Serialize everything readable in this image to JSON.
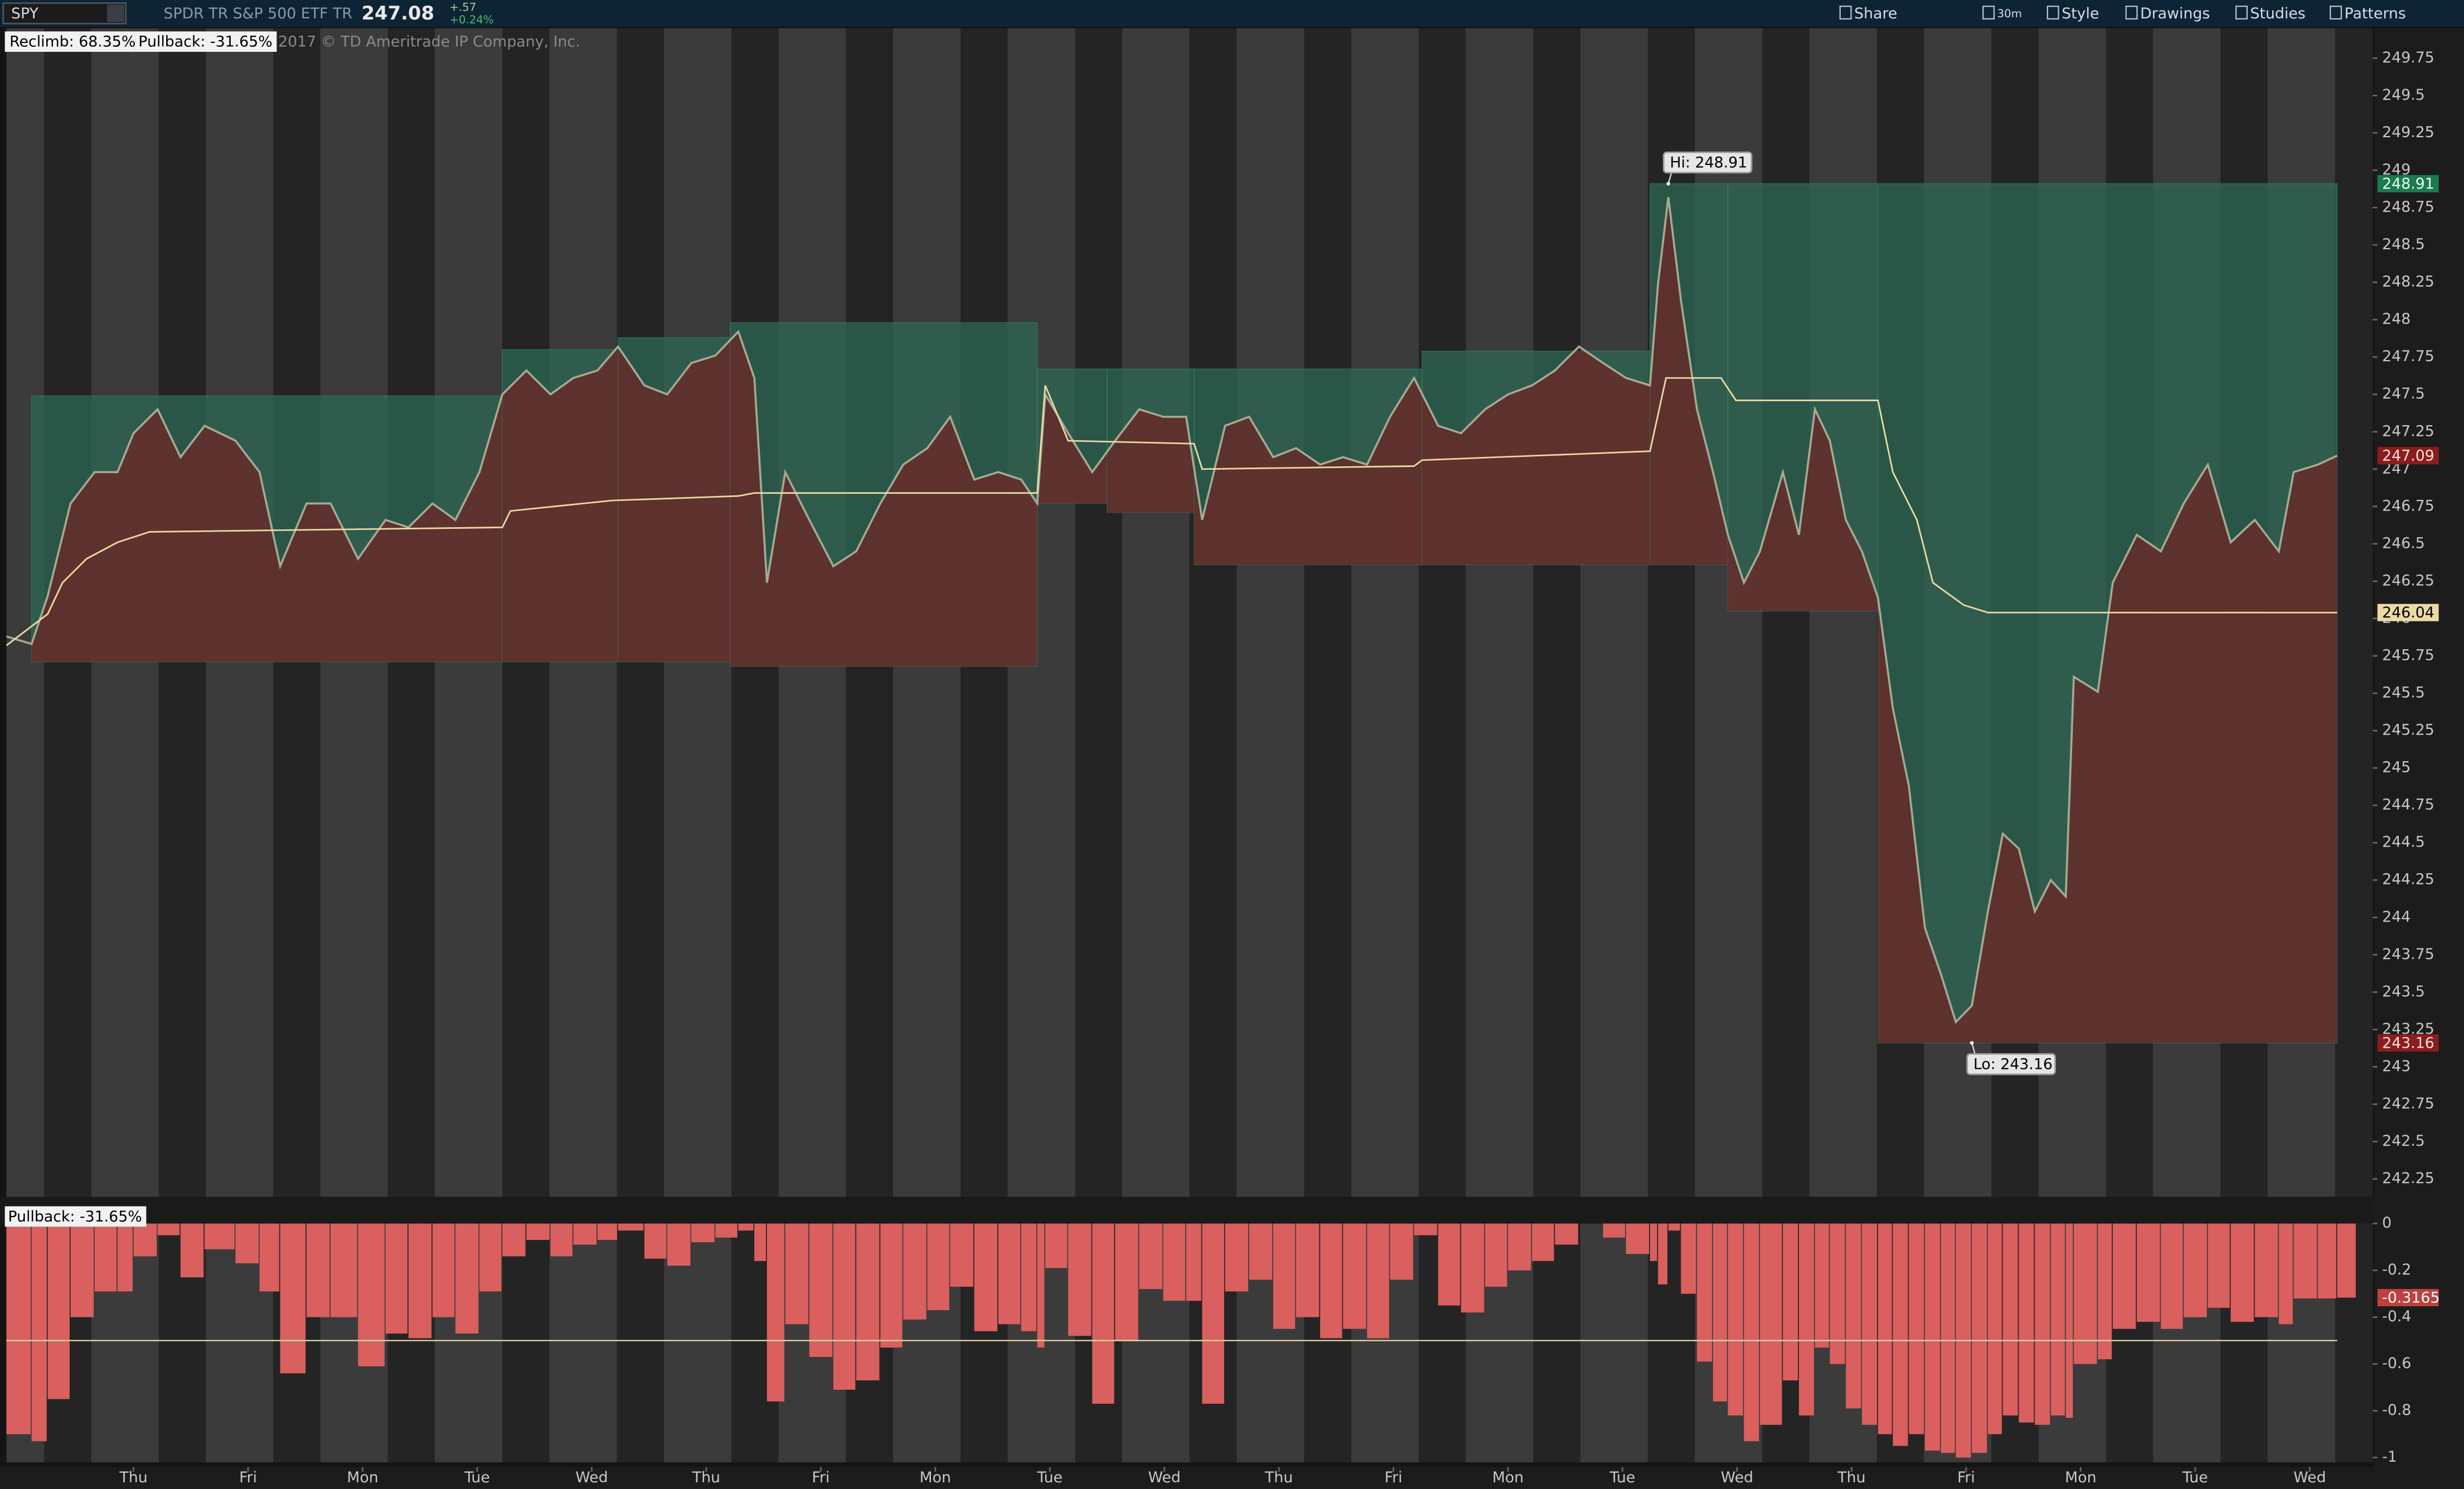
{
  "toolbar": {
    "symbol": "SPY",
    "description": "SPDR TR S&P 500 ETF TR",
    "last": 247.08,
    "change": "+.57",
    "change_pct": "+0.24%",
    "buttons": [
      "Share",
      "30m",
      "Style",
      "Drawings",
      "Studies",
      "Patterns"
    ]
  },
  "chart_data": [
    {
      "type": "line",
      "labels": [
        "Reclimb: 68.35%",
        "Pullback: -31.65%"
      ],
      "copyright": "2017 © TD Ameritrade IP Company, Inc.",
      "xlim": [
        -0.61,
        20.05
      ],
      "xticks": [
        {
          "value": 0.5,
          "label": "Thu"
        },
        {
          "value": 1.5,
          "label": "Fri"
        },
        {
          "value": 2.5,
          "label": "Mon"
        },
        {
          "value": 3.5,
          "label": "Tue"
        },
        {
          "value": 4.5,
          "label": "Wed"
        },
        {
          "value": 5.5,
          "label": "Thu"
        },
        {
          "value": 6.5,
          "label": "Fri"
        },
        {
          "value": 7.5,
          "label": "Mon"
        },
        {
          "value": 8.5,
          "label": "Tue"
        },
        {
          "value": 9.5,
          "label": "Wed"
        },
        {
          "value": 10.5,
          "label": "Thu"
        },
        {
          "value": 11.5,
          "label": "Fri"
        },
        {
          "value": 12.5,
          "label": "Mon"
        },
        {
          "value": 13.5,
          "label": "Tue"
        },
        {
          "value": 14.5,
          "label": "Wed"
        },
        {
          "value": 15.5,
          "label": "Thu"
        },
        {
          "value": 16.5,
          "label": "Fri"
        },
        {
          "value": 17.5,
          "label": "Mon"
        },
        {
          "value": 18.5,
          "label": "Tue"
        },
        {
          "value": 19.5,
          "label": "Wed"
        }
      ],
      "ylim": [
        242.13,
        249.95
      ],
      "yticks": [
        242.25,
        242.5,
        242.75,
        243,
        243.25,
        243.5,
        243.75,
        244,
        244.25,
        244.5,
        244.75,
        245,
        245.25,
        245.5,
        245.75,
        246,
        246.25,
        246.5,
        246.75,
        247,
        247.25,
        247.5,
        247.75,
        248,
        248.25,
        248.5,
        248.75,
        249,
        249.25,
        249.5,
        249.75
      ],
      "high_color": "#2c6a55",
      "low_color": "#6b2626",
      "zones": [
        {
          "x": [
            -0.39,
            3.72
          ],
          "high": 247.49,
          "low": 245.71
        },
        {
          "x": [
            3.72,
            4.73
          ],
          "high": 247.8,
          "low": 245.71
        },
        {
          "x": [
            4.73,
            5.71
          ],
          "high": 247.88,
          "low": 245.71
        },
        {
          "x": [
            5.71,
            8.39
          ],
          "high": 247.98,
          "low": 245.68
        },
        {
          "x": [
            8.39,
            9.0
          ],
          "high": 247.67,
          "low": 246.77
        },
        {
          "x": [
            9.0,
            9.76
          ],
          "high": 247.67,
          "low": 246.71
        },
        {
          "x": [
            9.76,
            11.75
          ],
          "high": 247.67,
          "low": 246.36
        },
        {
          "x": [
            11.75,
            13.74
          ],
          "high": 247.79,
          "low": 246.36
        },
        {
          "x": [
            13.74,
            14.42
          ],
          "high": 248.91,
          "low": 246.36
        },
        {
          "x": [
            14.42,
            15.73
          ],
          "high": 248.91,
          "low": 246.05
        },
        {
          "x": [
            15.73,
            19.74
          ],
          "high": 248.91,
          "low": 243.16
        }
      ],
      "series": [
        {
          "color": "#a3ab94",
          "x": [
            -0.61,
            -0.39,
            -0.25,
            -0.05,
            0.16,
            0.36,
            0.5,
            0.71,
            0.91,
            1.12,
            1.39,
            1.6,
            1.78,
            2.01,
            2.22,
            2.46,
            2.7,
            2.9,
            3.11,
            3.31,
            3.52,
            3.72,
            3.93,
            4.14,
            4.34,
            4.55,
            4.73,
            4.96,
            5.16,
            5.37,
            5.58,
            5.78,
            5.92,
            6.03,
            6.19,
            6.4,
            6.61,
            6.81,
            7.02,
            7.22,
            7.43,
            7.63,
            7.84,
            8.05,
            8.25,
            8.39,
            8.46,
            8.66,
            8.87,
            9.07,
            9.28,
            9.49,
            9.69,
            9.83,
            10.03,
            10.24,
            10.45,
            10.65,
            10.86,
            11.06,
            11.27,
            11.47,
            11.68,
            11.89,
            12.09,
            12.3,
            12.5,
            12.71,
            12.91,
            13.12,
            13.33,
            13.53,
            13.74,
            13.81,
            13.9,
            14.01,
            14.15,
            14.29,
            14.42,
            14.56,
            14.7,
            14.9,
            15.04,
            15.18,
            15.31,
            15.45,
            15.59,
            15.73,
            15.86,
            16.0,
            16.14,
            16.28,
            16.41,
            16.55,
            16.69,
            16.82,
            16.96,
            17.1,
            17.24,
            17.37,
            17.44,
            17.65,
            17.78,
            17.99,
            18.2,
            18.4,
            18.61,
            18.81,
            19.02,
            19.23,
            19.36,
            19.57,
            19.74
          ],
          "values": [
            245.88,
            245.83,
            246.15,
            246.77,
            246.98,
            246.98,
            247.24,
            247.4,
            247.08,
            247.29,
            247.19,
            246.98,
            246.35,
            246.77,
            246.77,
            246.4,
            246.66,
            246.61,
            246.77,
            246.66,
            246.98,
            247.5,
            247.66,
            247.5,
            247.61,
            247.66,
            247.82,
            247.56,
            247.5,
            247.71,
            247.76,
            247.92,
            247.61,
            246.24,
            246.98,
            246.66,
            246.35,
            246.45,
            246.77,
            247.03,
            247.14,
            247.35,
            246.93,
            246.98,
            246.93,
            246.77,
            247.5,
            247.24,
            246.98,
            247.19,
            247.4,
            247.35,
            247.35,
            246.66,
            247.29,
            247.35,
            247.08,
            247.14,
            247.03,
            247.08,
            247.03,
            247.35,
            247.61,
            247.29,
            247.24,
            247.4,
            247.5,
            247.56,
            247.66,
            247.82,
            247.71,
            247.61,
            247.56,
            248.24,
            248.82,
            248.13,
            247.4,
            246.98,
            246.56,
            246.24,
            246.45,
            246.98,
            246.56,
            247.4,
            247.19,
            246.66,
            246.45,
            246.14,
            245.4,
            244.88,
            243.93,
            243.62,
            243.3,
            243.41,
            244.04,
            244.56,
            244.46,
            244.04,
            244.25,
            244.14,
            245.61,
            245.51,
            246.24,
            246.56,
            246.45,
            246.77,
            247.03,
            246.51,
            246.66,
            246.45,
            246.98,
            247.03,
            247.09
          ]
        },
        {
          "color": "#eadba4",
          "x": [
            -0.61,
            -0.25,
            -0.12,
            0.09,
            0.36,
            0.64,
            3.72,
            3.79,
            4.68,
            5.78,
            5.92,
            8.39,
            8.46,
            8.66,
            9.76,
            9.83,
            11.68,
            11.75,
            13.74,
            13.88,
            14.36,
            14.49,
            15.73,
            15.86,
            16.07,
            16.21,
            16.48,
            16.69,
            19.74
          ],
          "values": [
            245.82,
            246.03,
            246.24,
            246.4,
            246.51,
            246.58,
            246.61,
            246.72,
            246.79,
            246.82,
            246.84,
            246.84,
            247.56,
            247.19,
            247.17,
            247.0,
            247.02,
            247.06,
            247.12,
            247.61,
            247.61,
            247.46,
            247.46,
            246.98,
            246.66,
            246.24,
            246.09,
            246.04,
            246.04
          ]
        }
      ],
      "annotations": [
        {
          "text": "Hi: 248.91",
          "x": 13.9,
          "y": 248.91
        },
        {
          "text": "Lo: 243.16",
          "x": 16.55,
          "y": 243.16
        }
      ]
    },
    {
      "type": "bar",
      "label": "Pullback: -31.65%",
      "color": "#d9605e",
      "threshold": -0.5,
      "threshold_color": "#eadba4",
      "ylim": [
        -1,
        0
      ],
      "yticks": [
        0,
        -0.2,
        -0.4,
        -0.6,
        -0.8,
        -1
      ],
      "x": [
        -0.61,
        -0.39,
        -0.25,
        -0.05,
        0.16,
        0.36,
        0.5,
        0.71,
        0.91,
        1.12,
        1.39,
        1.6,
        1.78,
        2.01,
        2.22,
        2.46,
        2.7,
        2.9,
        3.11,
        3.31,
        3.52,
        3.72,
        3.93,
        4.14,
        4.34,
        4.55,
        4.73,
        4.96,
        5.16,
        5.37,
        5.58,
        5.78,
        5.92,
        6.03,
        6.19,
        6.4,
        6.61,
        6.81,
        7.02,
        7.22,
        7.43,
        7.63,
        7.84,
        8.05,
        8.25,
        8.39,
        8.46,
        8.66,
        8.87,
        9.07,
        9.28,
        9.49,
        9.69,
        9.83,
        10.03,
        10.24,
        10.45,
        10.65,
        10.86,
        11.06,
        11.27,
        11.47,
        11.68,
        11.89,
        12.09,
        12.3,
        12.5,
        12.71,
        12.91,
        13.12,
        13.33,
        13.53,
        13.74,
        13.81,
        13.9,
        14.01,
        14.15,
        14.29,
        14.42,
        14.56,
        14.7,
        14.9,
        15.04,
        15.18,
        15.31,
        15.45,
        15.59,
        15.73,
        15.86,
        16.0,
        16.14,
        16.28,
        16.41,
        16.55,
        16.69,
        16.82,
        16.96,
        17.1,
        17.24,
        17.37,
        17.44,
        17.65,
        17.78,
        17.99,
        18.2,
        18.4,
        18.61,
        18.81,
        19.02,
        19.23,
        19.36,
        19.57,
        19.74
      ],
      "values": [
        -0.9,
        -0.93,
        -0.75,
        -0.4,
        -0.29,
        -0.29,
        -0.14,
        -0.05,
        -0.23,
        -0.11,
        -0.17,
        -0.29,
        -0.64,
        -0.4,
        -0.4,
        -0.61,
        -0.47,
        -0.49,
        -0.4,
        -0.47,
        -0.29,
        -0.14,
        -0.07,
        -0.14,
        -0.09,
        -0.07,
        -0.03,
        -0.15,
        -0.18,
        -0.08,
        -0.06,
        -0.03,
        -0.16,
        -0.76,
        -0.43,
        -0.57,
        -0.71,
        -0.67,
        -0.53,
        -0.41,
        -0.37,
        -0.27,
        -0.46,
        -0.43,
        -0.46,
        -0.53,
        -0.19,
        -0.48,
        -0.77,
        -0.5,
        -0.28,
        -0.33,
        -0.33,
        -0.77,
        -0.29,
        -0.24,
        -0.45,
        -0.4,
        -0.49,
        -0.45,
        -0.49,
        -0.24,
        -0.05,
        -0.35,
        -0.38,
        -0.27,
        -0.2,
        -0.16,
        -0.09,
        0,
        -0.06,
        -0.13,
        -0.16,
        -0.26,
        -0.03,
        -0.3,
        -0.59,
        -0.76,
        -0.82,
        -0.93,
        -0.86,
        -0.67,
        -0.82,
        -0.53,
        -0.6,
        -0.79,
        -0.86,
        -0.9,
        -0.95,
        -0.9,
        -0.97,
        -0.98,
        -1,
        -0.98,
        -0.9,
        -0.82,
        -0.85,
        -0.86,
        -0.82,
        -0.83,
        -0.6,
        -0.58,
        -0.45,
        -0.42,
        -0.45,
        -0.4,
        -0.36,
        -0.42,
        -0.4,
        -0.43,
        -0.32,
        -0.32,
        -0.3165
      ]
    }
  ]
}
